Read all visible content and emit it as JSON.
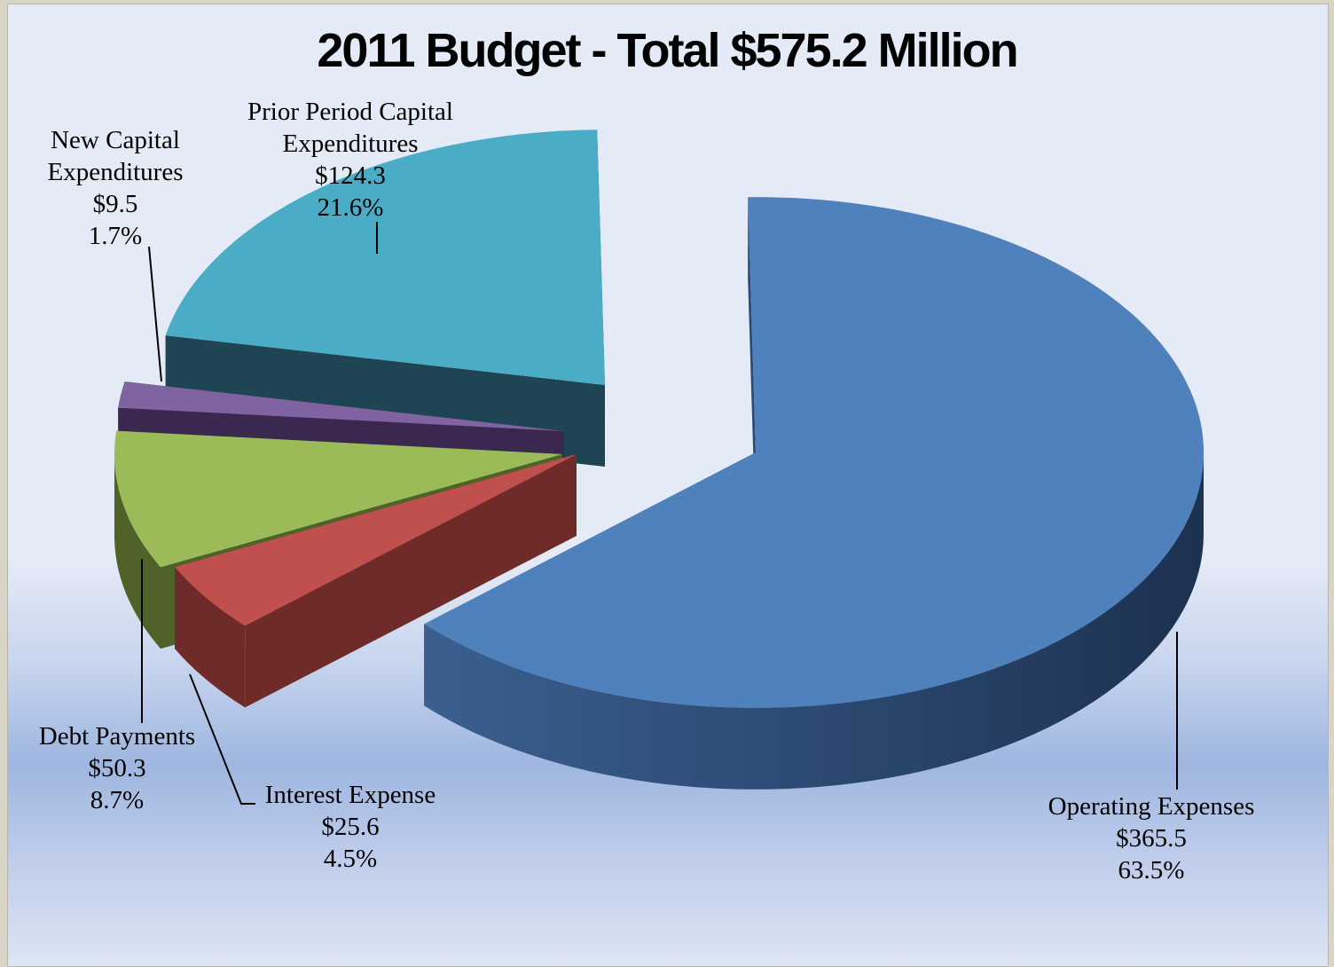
{
  "chart_data": {
    "type": "pie",
    "title": "2011 Budget - Total $575.2 Million",
    "unit": "$ Million",
    "slices": [
      {
        "name": "Operating Expenses",
        "value_label": "$365.5",
        "value": 365.5,
        "percent_label": "63.5%",
        "percent": 63.5,
        "color": "#4f81bd",
        "side_color": "#2b4a74"
      },
      {
        "name": "Interest Expense",
        "value_label": "$25.6",
        "value": 25.6,
        "percent_label": "4.5%",
        "percent": 4.5,
        "color": "#c0504d",
        "side_color": "#6e2b29"
      },
      {
        "name": "Debt Payments",
        "value_label": "$50.3",
        "value": 50.3,
        "percent_label": "8.7%",
        "percent": 8.7,
        "color": "#9bbb59",
        "side_color": "#4f6328"
      },
      {
        "name": "New Capital Expenditures",
        "value_label": "$9.5",
        "value": 9.5,
        "percent_label": "1.7%",
        "percent": 1.7,
        "color": "#8064a2",
        "side_color": "#3a2850"
      },
      {
        "name": "Prior Period Capital Expenditures",
        "value_label": "$124.3",
        "value": 124.3,
        "percent_label": "21.6%",
        "percent": 21.6,
        "color": "#4bacc6",
        "side_color": "#1f4554"
      }
    ],
    "labels": {
      "operating": [
        "Operating Expenses",
        "$365.5",
        "63.5%"
      ],
      "interest": [
        "Interest Expense",
        "$25.6",
        "4.5%"
      ],
      "debt": [
        "Debt Payments",
        "$50.3",
        "8.7%"
      ],
      "newcap": [
        "New Capital",
        "Expenditures",
        "$9.5",
        "1.7%"
      ],
      "prior": [
        "Prior Period Capital",
        "Expenditures",
        "$124.3",
        "21.6%"
      ]
    }
  }
}
